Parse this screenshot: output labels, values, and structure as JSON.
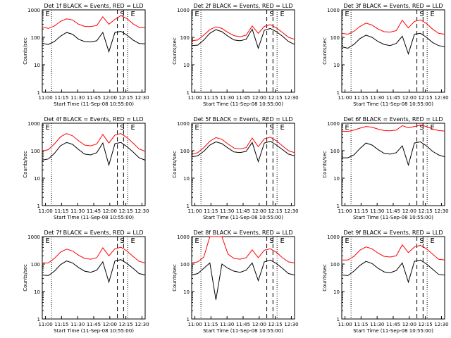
{
  "figure": {
    "common": {
      "ylabel": "Counts/sec",
      "xlabel": "Start Time (11-Sep-08 10:55:00)",
      "x_ticks": [
        "11:00",
        "11:15",
        "11:30",
        "11:45",
        "12:00",
        "12:15",
        "12:30"
      ],
      "y_ticks": [
        "1",
        "10",
        "100",
        "1000"
      ],
      "marker_labels": [
        "E",
        "S",
        "E"
      ],
      "black_color": "#000000",
      "red_color": "#ff0000"
    }
  },
  "chart_data": [
    {
      "type": "line",
      "title": "Det 1f BLACK = Events, RED = LLD",
      "ylim": [
        1,
        1000
      ],
      "y_scale": "log",
      "x_range": [
        "10:57",
        "12:33"
      ],
      "series": [
        {
          "color": "black",
          "values": [
            60,
            55,
            70,
            110,
            150,
            130,
            85,
            70,
            68,
            75,
            150,
            30,
            150,
            165,
            120,
            80,
            60,
            58
          ]
        },
        {
          "color": "red",
          "values": [
            240,
            210,
            260,
            380,
            470,
            430,
            300,
            250,
            245,
            270,
            560,
            300,
            450,
            620,
            480,
            310,
            230,
            220
          ]
        }
      ]
    },
    {
      "type": "line",
      "title": "Det 2f BLACK = Events, RED = LLD",
      "ylim": [
        1,
        1000
      ],
      "y_scale": "log",
      "x_range": [
        "10:57",
        "12:33"
      ],
      "series": [
        {
          "color": "black",
          "values": [
            50,
            52,
            80,
            140,
            190,
            160,
            110,
            80,
            75,
            85,
            200,
            40,
            180,
            210,
            160,
            110,
            70,
            55
          ]
        },
        {
          "color": "red",
          "values": [
            75,
            80,
            120,
            190,
            240,
            210,
            150,
            115,
            105,
            120,
            260,
            140,
            250,
            290,
            220,
            150,
            100,
            85
          ]
        }
      ]
    },
    {
      "type": "line",
      "title": "Det 3f BLACK = Events, RED = LLD",
      "ylim": [
        1,
        1000
      ],
      "y_scale": "log",
      "x_range": [
        "10:57",
        "12:33"
      ],
      "series": [
        {
          "color": "black",
          "values": [
            45,
            40,
            55,
            90,
            120,
            100,
            70,
            55,
            50,
            60,
            110,
            25,
            130,
            140,
            100,
            65,
            50,
            45
          ]
        },
        {
          "color": "red",
          "values": [
            140,
            130,
            165,
            250,
            330,
            280,
            200,
            160,
            155,
            175,
            420,
            220,
            380,
            430,
            320,
            200,
            140,
            130
          ]
        }
      ]
    },
    {
      "type": "line",
      "title": "Det 4f BLACK = Events, RED = LLD",
      "ylim": [
        1,
        1000
      ],
      "y_scale": "log",
      "x_range": [
        "10:57",
        "12:33"
      ],
      "series": [
        {
          "color": "black",
          "values": [
            45,
            50,
            80,
            150,
            200,
            170,
            110,
            75,
            70,
            85,
            190,
            30,
            180,
            200,
            140,
            90,
            55,
            45
          ]
        },
        {
          "color": "red",
          "values": [
            95,
            110,
            175,
            320,
            420,
            350,
            230,
            160,
            150,
            175,
            390,
            190,
            370,
            420,
            300,
            190,
            115,
            95
          ]
        }
      ]
    },
    {
      "type": "line",
      "title": "Det 5f BLACK = Events, RED = LLD",
      "ylim": [
        1,
        1000
      ],
      "y_scale": "log",
      "x_range": [
        "10:57",
        "12:33"
      ],
      "series": [
        {
          "color": "black",
          "values": [
            60,
            65,
            95,
            160,
            210,
            180,
            125,
            90,
            85,
            95,
            200,
            40,
            190,
            220,
            160,
            110,
            75,
            65
          ]
        },
        {
          "color": "red",
          "values": [
            75,
            85,
            130,
            220,
            300,
            260,
            175,
            125,
            115,
            130,
            290,
            140,
            270,
            310,
            230,
            150,
            100,
            85
          ]
        }
      ]
    },
    {
      "type": "line",
      "title": "Det 6f BLACK = Events, RED = LLD",
      "ylim": [
        1,
        1000
      ],
      "y_scale": "log",
      "x_range": [
        "10:57",
        "12:33"
      ],
      "series": [
        {
          "color": "black",
          "values": [
            55,
            55,
            70,
            120,
            190,
            160,
            110,
            80,
            75,
            85,
            150,
            30,
            190,
            210,
            150,
            95,
            70,
            60
          ]
        },
        {
          "color": "red",
          "values": [
            520,
            500,
            560,
            660,
            760,
            720,
            610,
            540,
            530,
            560,
            820,
            680,
            760,
            850,
            760,
            620,
            540,
            520
          ]
        }
      ]
    },
    {
      "type": "line",
      "title": "Det 7f BLACK = Events, RED = LLD",
      "ylim": [
        1,
        1000
      ],
      "y_scale": "log",
      "x_range": [
        "10:57",
        "12:33"
      ],
      "series": [
        {
          "color": "black",
          "values": [
            40,
            38,
            55,
            95,
            130,
            110,
            75,
            55,
            50,
            60,
            120,
            22,
            130,
            145,
            105,
            70,
            45,
            40
          ]
        },
        {
          "color": "red",
          "values": [
            110,
            110,
            160,
            270,
            350,
            300,
            210,
            160,
            150,
            170,
            390,
            200,
            360,
            410,
            300,
            190,
            125,
            110
          ]
        }
      ]
    },
    {
      "type": "line",
      "title": "Det 8f BLACK = Events, RED = LLD",
      "ylim": [
        1,
        1000
      ],
      "y_scale": "log",
      "x_range": [
        "10:57",
        "12:33"
      ],
      "series": [
        {
          "color": "black",
          "values": [
            40,
            45,
            70,
            110,
            5,
            100,
            70,
            55,
            50,
            60,
            110,
            25,
            120,
            140,
            105,
            70,
            45,
            40
          ]
        },
        {
          "color": "red",
          "values": [
            110,
            120,
            180,
            1000,
            1000,
            1000,
            230,
            160,
            150,
            170,
            330,
            170,
            320,
            360,
            270,
            170,
            120,
            110
          ]
        }
      ]
    },
    {
      "type": "line",
      "title": "Det 9f BLACK = Events, RED = LLD",
      "ylim": [
        1,
        1000
      ],
      "y_scale": "log",
      "x_range": [
        "10:57",
        "12:33"
      ],
      "series": [
        {
          "color": "black",
          "values": [
            40,
            38,
            55,
            90,
            125,
            105,
            70,
            52,
            48,
            58,
            110,
            22,
            125,
            140,
            100,
            65,
            42,
            40
          ]
        },
        {
          "color": "red",
          "values": [
            140,
            140,
            190,
            320,
            420,
            360,
            250,
            190,
            180,
            200,
            500,
            260,
            420,
            480,
            360,
            230,
            150,
            140
          ]
        }
      ]
    }
  ]
}
